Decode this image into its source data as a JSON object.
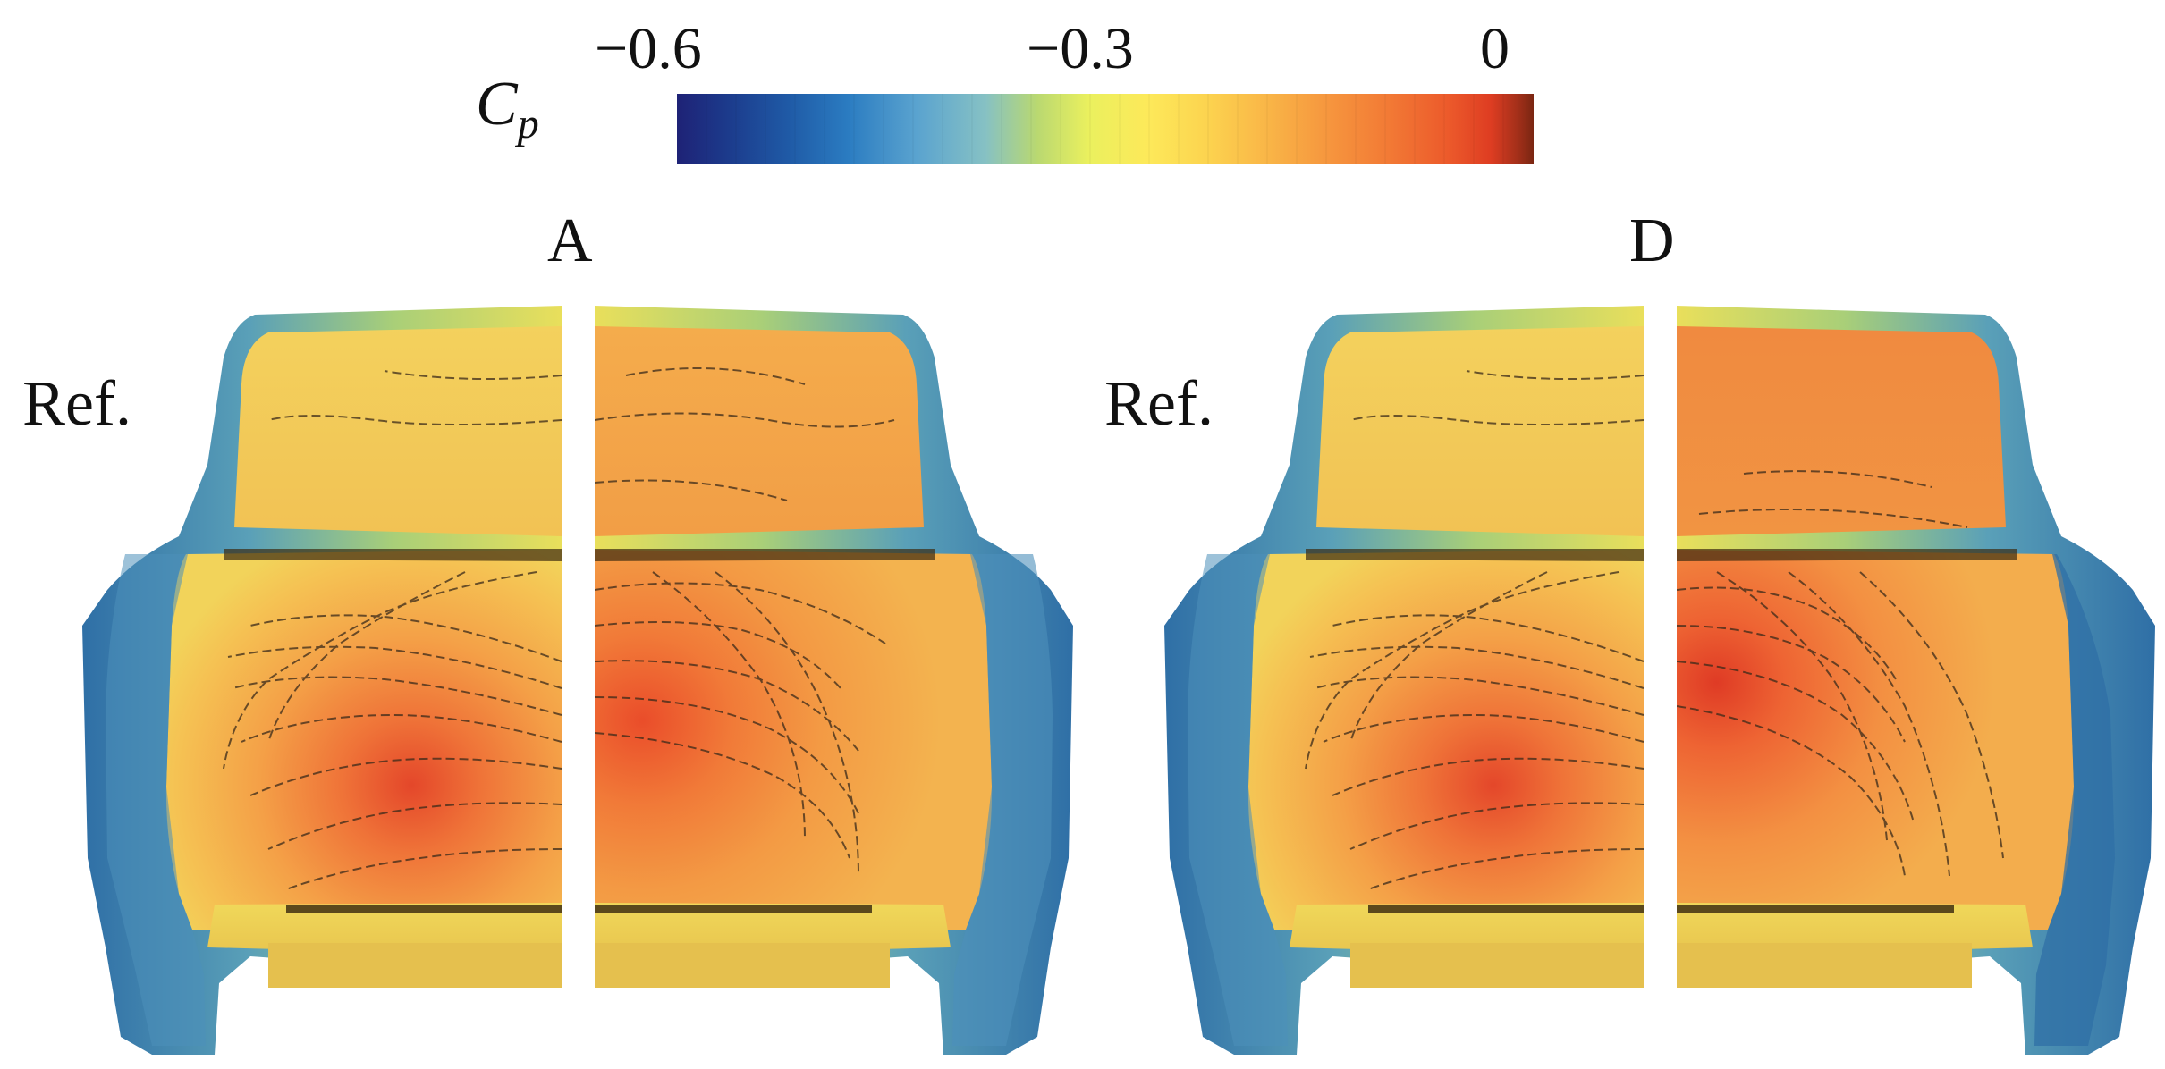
{
  "colorbar": {
    "symbol_main": "C",
    "symbol_sub": "p",
    "tick_min": "−0.6",
    "tick_mid": "−0.3",
    "tick_max": "0",
    "range": [
      -0.6,
      0
    ],
    "stops": [
      "#1e2276",
      "#1c3b8c",
      "#1f5aa6",
      "#2b7cc1",
      "#5aa3cf",
      "#86c1c4",
      "#b9d871",
      "#eaf05e",
      "#fde95a",
      "#fcd34f",
      "#f9b547",
      "#f6963e",
      "#f27a35",
      "#ec5a2b",
      "#de3d22",
      "#a6301a",
      "#7a2612"
    ]
  },
  "panels": [
    {
      "label": "A",
      "ref_label": "Ref."
    },
    {
      "label": "D",
      "ref_label": "Ref."
    }
  ],
  "colors": {
    "body_yellow": "#f4cc55",
    "body_orange": "#f19a45",
    "body_red": "#e4552b",
    "edge_blue": "#3f7fb2",
    "edge_teal": "#6fb4a6",
    "edge_yellow": "#e8e25a"
  }
}
